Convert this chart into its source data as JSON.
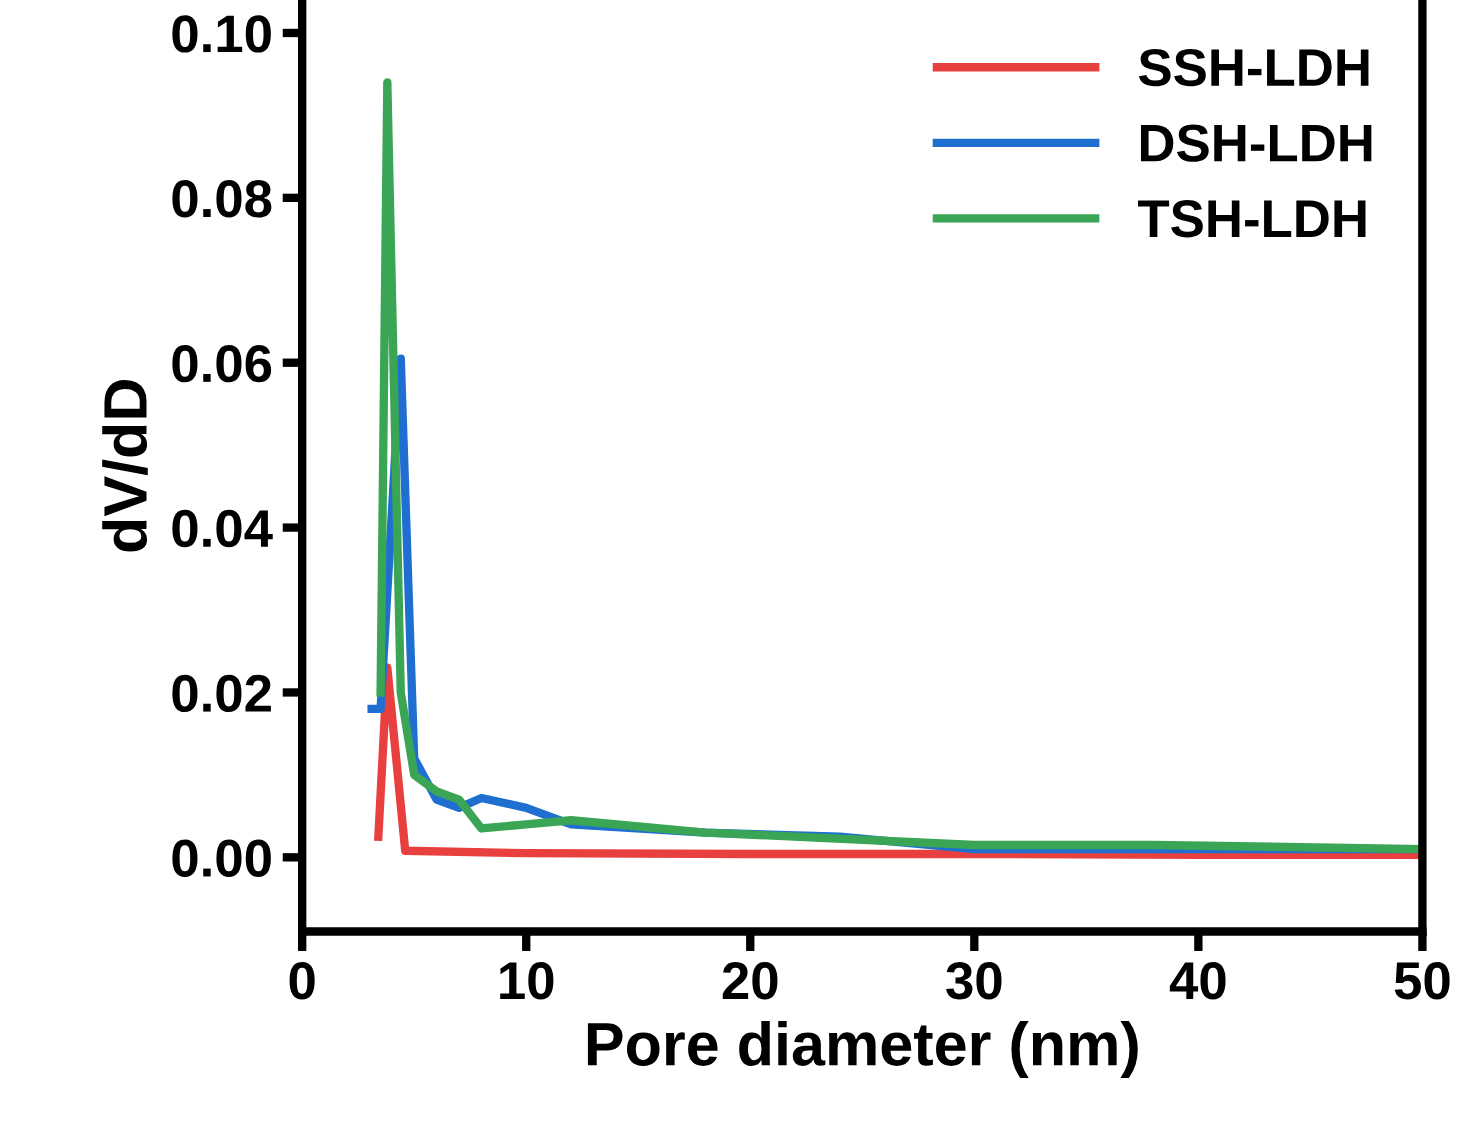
{
  "chart_data": {
    "type": "line",
    "xlabel": "Pore diameter (nm)",
    "ylabel": "dV/dD",
    "xlim": [
      0,
      50
    ],
    "ylim": [
      -0.009,
      0.104
    ],
    "xticks": [
      0,
      10,
      20,
      30,
      40,
      50
    ],
    "yticks": [
      {
        "value": 0,
        "label": "0.00"
      },
      {
        "value": 0.02,
        "label": "0.02"
      },
      {
        "value": 0.04,
        "label": "0.04"
      },
      {
        "value": 0.06,
        "label": "0.06"
      },
      {
        "value": 0.08,
        "label": "0.08"
      },
      {
        "value": 0.1,
        "label": "0.10"
      }
    ],
    "legend": "top right",
    "grid": false,
    "series": [
      {
        "name": "SSH-LDH",
        "color": "#e8403f",
        "x": [
          3.4,
          3.8,
          4.6,
          10,
          20,
          30,
          40,
          50
        ],
        "values": [
          0.0025,
          0.023,
          0.0008,
          0.0005,
          0.0004,
          0.0004,
          0.0003,
          0.0003
        ]
      },
      {
        "name": "DSH-LDH",
        "color": "#1f6fd1",
        "x": [
          3.1,
          3.5,
          4.4,
          5,
          6,
          7,
          8,
          10,
          12,
          18,
          24,
          30,
          40,
          50
        ],
        "values": [
          0.018,
          0.018,
          0.0605,
          0.012,
          0.007,
          0.006,
          0.0072,
          0.006,
          0.004,
          0.003,
          0.0025,
          0.001,
          0.001,
          0.001
        ]
      },
      {
        "name": "TSH-LDH",
        "color": "#3aa655",
        "x": [
          3.5,
          3.8,
          4.4,
          5,
          6,
          7,
          8,
          10,
          12,
          18,
          30,
          38,
          50
        ],
        "values": [
          0.02,
          0.094,
          0.02,
          0.01,
          0.008,
          0.007,
          0.0035,
          0.004,
          0.0045,
          0.003,
          0.0015,
          0.0015,
          0.001
        ]
      }
    ]
  }
}
